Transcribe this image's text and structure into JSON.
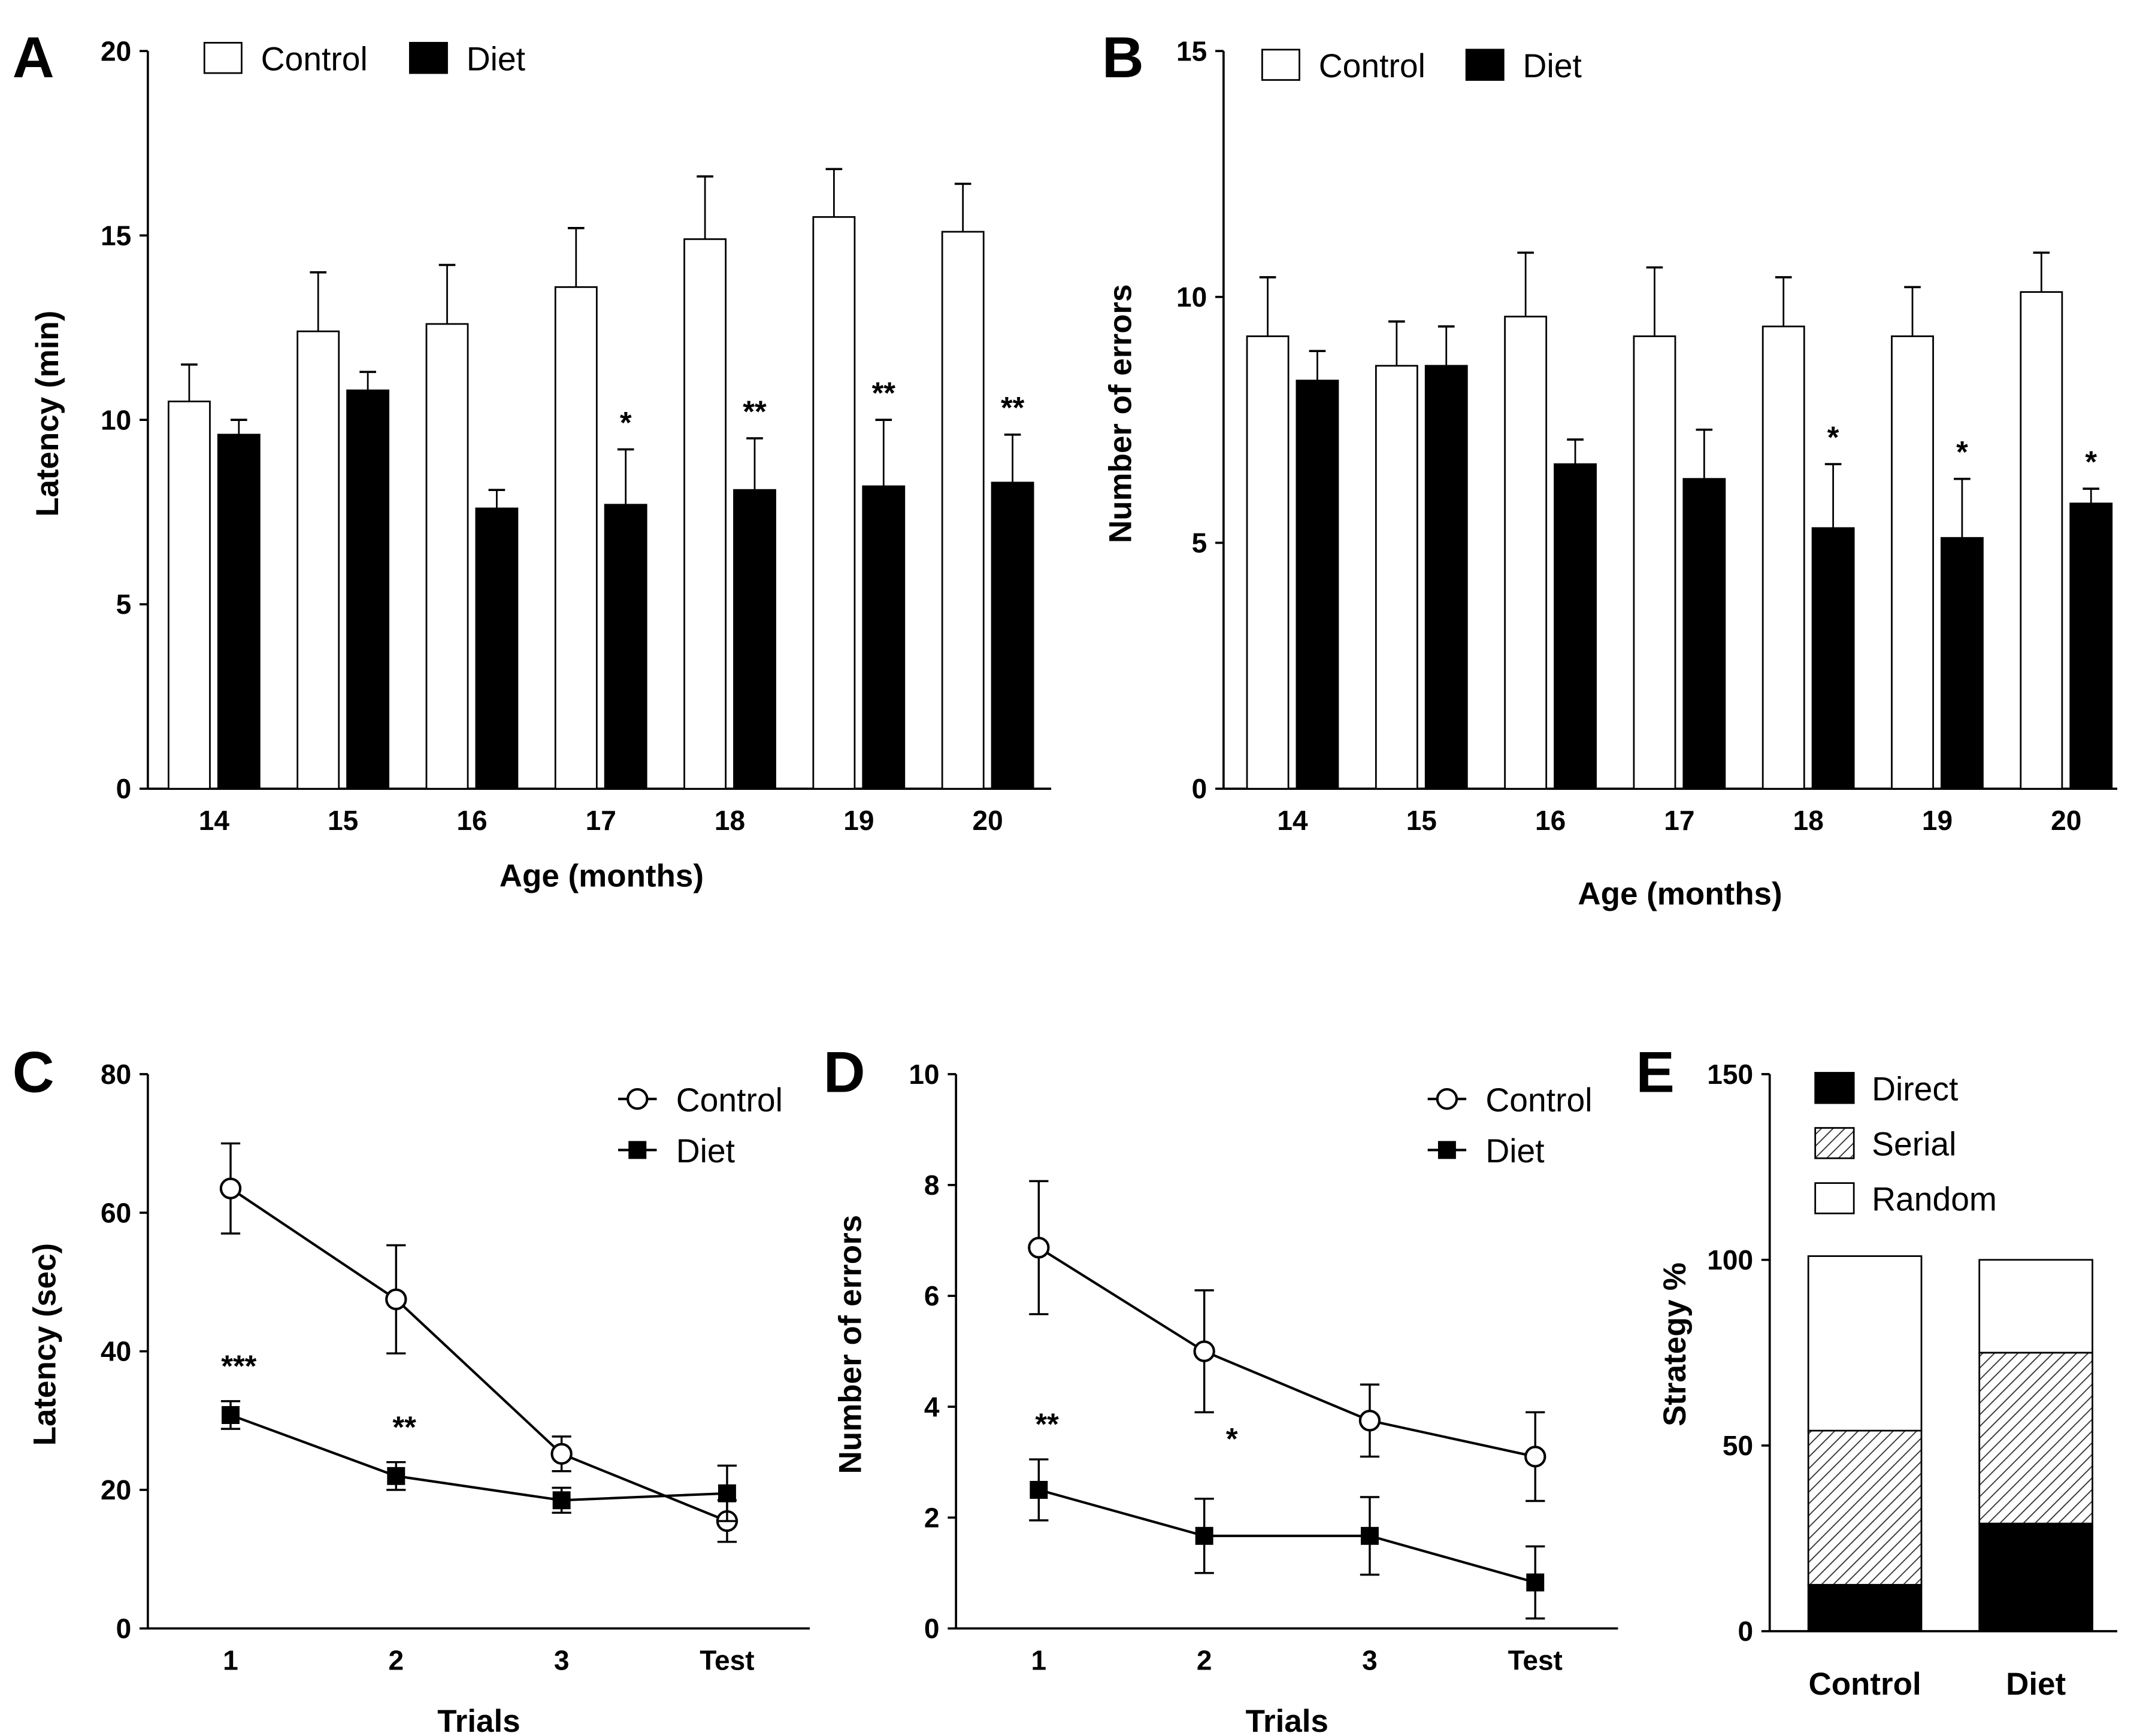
{
  "chart_data": [
    {
      "panel": "A",
      "type": "bar",
      "title": "",
      "xlabel": "Age (months)",
      "ylabel": "Latency (min)",
      "categories": [
        "14",
        "15",
        "16",
        "17",
        "18",
        "19",
        "20"
      ],
      "yticks": [
        "0",
        "5",
        "10",
        "15",
        "20"
      ],
      "ylim": [
        0,
        20
      ],
      "legend": [
        "Control",
        "Diet"
      ],
      "legend_placement": "top-left",
      "series": [
        {
          "name": "Control",
          "color": "#ffffff",
          "values": [
            10.5,
            12.4,
            12.6,
            13.6,
            14.9,
            15.5,
            15.1
          ],
          "error": [
            1.0,
            1.6,
            1.6,
            1.6,
            1.7,
            1.3,
            1.3
          ]
        },
        {
          "name": "Diet",
          "color": "#000000",
          "values": [
            9.6,
            10.8,
            7.6,
            7.7,
            8.1,
            8.2,
            8.3
          ],
          "error": [
            0.4,
            0.5,
            0.5,
            1.5,
            1.4,
            1.8,
            1.3
          ]
        }
      ],
      "significance": [
        "",
        "",
        "",
        "*",
        "**",
        "**",
        "**"
      ]
    },
    {
      "panel": "B",
      "type": "bar",
      "title": "",
      "xlabel": "Age (months)",
      "ylabel": "Number of errors",
      "categories": [
        "14",
        "15",
        "16",
        "17",
        "18",
        "19",
        "20"
      ],
      "yticks": [
        "0",
        "5",
        "10",
        "15"
      ],
      "ylim": [
        0,
        15
      ],
      "legend": [
        "Control",
        "Diet"
      ],
      "legend_placement": "top-left",
      "series": [
        {
          "name": "Control",
          "color": "#ffffff",
          "values": [
            9.2,
            8.6,
            9.6,
            9.2,
            9.4,
            9.2,
            10.1
          ],
          "error": [
            1.2,
            0.9,
            1.3,
            1.4,
            1.0,
            1.0,
            0.8
          ]
        },
        {
          "name": "Diet",
          "color": "#000000",
          "values": [
            8.3,
            8.6,
            6.6,
            6.3,
            5.3,
            5.1,
            5.8
          ],
          "error": [
            0.6,
            0.8,
            0.5,
            1.0,
            1.3,
            1.2,
            0.3
          ]
        }
      ],
      "significance": [
        "",
        "",
        "",
        "",
        "*",
        "*",
        "*"
      ]
    },
    {
      "panel": "C",
      "type": "line",
      "title": "",
      "xlabel": "Trials",
      "ylabel": "Latency (sec)",
      "categories": [
        "1",
        "2",
        "3",
        "Test"
      ],
      "yticks": [
        "0",
        "20",
        "40",
        "60",
        "80"
      ],
      "ylim": [
        0,
        80
      ],
      "legend": [
        "Control",
        "Diet"
      ],
      "legend_placement": "top-right",
      "series": [
        {
          "name": "Control",
          "marker": "open-circle",
          "values": [
            63.5,
            47.5,
            25.2,
            15.5
          ],
          "error": [
            6.5,
            7.8,
            2.5,
            3.0
          ]
        },
        {
          "name": "Diet",
          "marker": "filled-square",
          "values": [
            30.8,
            22.0,
            18.5,
            19.5
          ],
          "error": [
            2.0,
            2.0,
            1.8,
            4.0
          ]
        }
      ],
      "significance": [
        "***",
        "**",
        "",
        ""
      ]
    },
    {
      "panel": "D",
      "type": "line",
      "title": "",
      "xlabel": "Trials",
      "ylabel": "Number of errors",
      "categories": [
        "1",
        "2",
        "3",
        "Test"
      ],
      "yticks": [
        "0",
        "2",
        "4",
        "6",
        "8",
        "10"
      ],
      "ylim": [
        0,
        10
      ],
      "legend": [
        "Control",
        "Diet"
      ],
      "legend_placement": "top-right",
      "series": [
        {
          "name": "Control",
          "marker": "open-circle",
          "values": [
            6.87,
            5.0,
            3.75,
            3.1
          ],
          "error": [
            1.2,
            1.1,
            0.65,
            0.8
          ]
        },
        {
          "name": "Diet",
          "marker": "filled-square",
          "values": [
            2.5,
            1.67,
            1.67,
            0.83
          ],
          "error": [
            0.55,
            0.67,
            0.7,
            0.65
          ]
        }
      ],
      "significance": [
        "**",
        "*",
        "",
        ""
      ]
    },
    {
      "panel": "E",
      "type": "bar",
      "stacked": true,
      "title": "",
      "xlabel": "",
      "ylabel": "Strategy %",
      "categories": [
        "Control",
        "Diet"
      ],
      "yticks": [
        "0",
        "50",
        "100",
        "150"
      ],
      "ylim": [
        0,
        150
      ],
      "legend": [
        "Direct",
        "Serial",
        "Random"
      ],
      "legend_placement": "top-left",
      "series": [
        {
          "name": "Direct",
          "fill": "solid-black",
          "values": [
            12.5,
            29
          ]
        },
        {
          "name": "Serial",
          "fill": "hatched",
          "values": [
            41.5,
            46
          ]
        },
        {
          "name": "Random",
          "fill": "white",
          "values": [
            47,
            25
          ]
        }
      ]
    }
  ]
}
